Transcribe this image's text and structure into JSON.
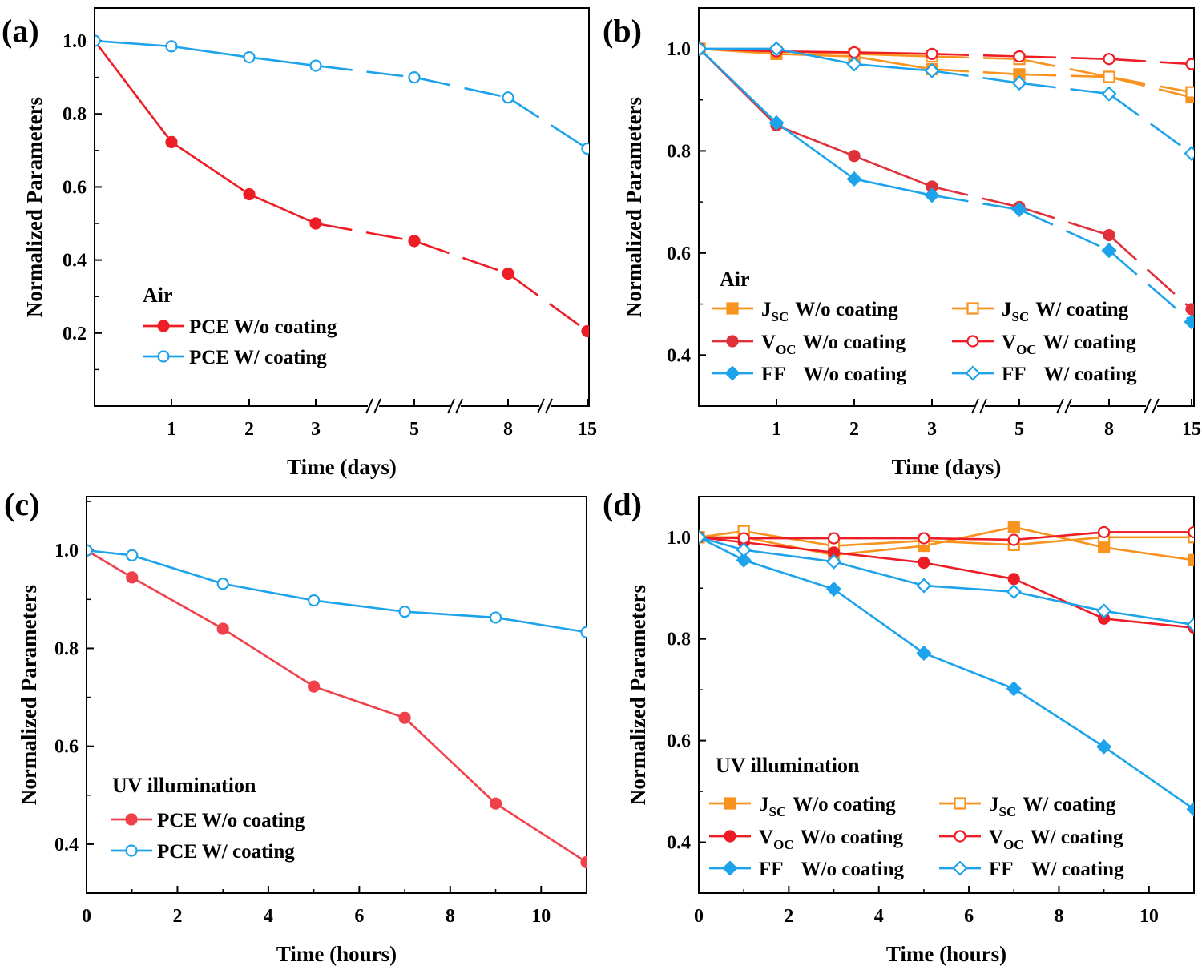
{
  "chart_data": [
    {
      "panel_label": "(a)",
      "type": "line",
      "xlabel": "Time (days)",
      "ylabel": "Normalized Parameters",
      "x_scale": "broken",
      "x_ticks": [
        "1",
        "2",
        "3",
        "5",
        "8",
        "15"
      ],
      "y_ticks": [
        "0.2",
        "0.4",
        "0.6",
        "0.8",
        "1.0"
      ],
      "ylim": [
        0.0,
        1.09
      ],
      "grid": false,
      "legend_title": "Air",
      "legend_position": "lower-left",
      "series": [
        {
          "name": "PCE W/o coating",
          "color": "#ee1c25",
          "marker": "circle",
          "filled": true,
          "x": [
            0,
            1,
            2,
            3,
            5,
            8,
            15
          ],
          "y": [
            1.0,
            0.723,
            0.58,
            0.5,
            0.452,
            0.363,
            0.205
          ]
        },
        {
          "name": "PCE W/   coating",
          "color": "#1ca3ec",
          "marker": "circle",
          "filled": false,
          "x": [
            0,
            1,
            2,
            3,
            5,
            8,
            15
          ],
          "y": [
            1.0,
            0.985,
            0.955,
            0.932,
            0.9,
            0.845,
            0.705
          ]
        }
      ]
    },
    {
      "panel_label": "(b)",
      "type": "line",
      "xlabel": "Time (days)",
      "ylabel": "Normalized Parameters",
      "x_scale": "broken",
      "x_ticks": [
        "1",
        "2",
        "3",
        "5",
        "8",
        "15"
      ],
      "y_ticks": [
        "0.4",
        "0.6",
        "0.8",
        "1.0"
      ],
      "ylim": [
        0.3,
        1.08
      ],
      "grid": false,
      "legend_title": "Air",
      "legend_position": "lower",
      "series": [
        {
          "name": "J<sub>SC</sub> W/o coating",
          "main": "J",
          "sub": "SC",
          "rest": "W/o coating",
          "color": "#f7931e",
          "marker": "square",
          "filled": true,
          "x": [
            0,
            1,
            2,
            3,
            5,
            8,
            15
          ],
          "y": [
            1.0,
            0.99,
            0.985,
            0.96,
            0.95,
            0.945,
            0.905
          ]
        },
        {
          "name": "J<sub>SC</sub> W/ coating",
          "main": "J",
          "sub": "SC",
          "rest": "W/ coating",
          "color": "#f7931e",
          "marker": "square",
          "filled": false,
          "x": [
            0,
            1,
            2,
            3,
            5,
            8,
            15
          ],
          "y": [
            1.0,
            0.995,
            0.99,
            0.985,
            0.98,
            0.945,
            0.915
          ]
        },
        {
          "name": "V<sub>OC</sub> W/o coating",
          "main": "V",
          "sub": "OC",
          "rest": "W/o coating",
          "color": "#e0313a",
          "marker": "circle",
          "filled": true,
          "x": [
            0,
            1,
            2,
            3,
            5,
            8,
            15
          ],
          "y": [
            1.0,
            0.85,
            0.79,
            0.73,
            0.69,
            0.635,
            0.49
          ]
        },
        {
          "name": "V<sub>OC</sub> W/ coating",
          "main": "V",
          "sub": "OC",
          "rest": "W/ coating",
          "color": "#ee1c25",
          "marker": "circle",
          "filled": false,
          "x": [
            0,
            1,
            2,
            3,
            5,
            8,
            15
          ],
          "y": [
            1.0,
            0.995,
            0.993,
            0.99,
            0.985,
            0.98,
            0.97
          ]
        },
        {
          "name": "FF W/o coating",
          "main": "FF",
          "sub": "",
          "rest": "W/o coating",
          "color": "#1ca3ec",
          "marker": "diamond",
          "filled": true,
          "x": [
            0,
            1,
            2,
            3,
            5,
            8,
            15
          ],
          "y": [
            1.0,
            0.855,
            0.745,
            0.713,
            0.685,
            0.605,
            0.465
          ]
        },
        {
          "name": "FF W/ coating",
          "main": "FF",
          "sub": "",
          "rest": "W/ coating",
          "color": "#1ca3ec",
          "marker": "diamond",
          "filled": false,
          "x": [
            0,
            1,
            2,
            3,
            5,
            8,
            15
          ],
          "y": [
            1.0,
            1.0,
            0.97,
            0.957,
            0.933,
            0.912,
            0.795
          ]
        }
      ]
    },
    {
      "panel_label": "(c)",
      "type": "line",
      "xlabel": "Time (hours)",
      "ylabel": "Normalized Parameters",
      "x_ticks": [
        "0",
        "2",
        "4",
        "6",
        "8",
        "10"
      ],
      "y_ticks": [
        "0.4",
        "0.6",
        "0.8",
        "1.0"
      ],
      "xlim": [
        0,
        11
      ],
      "ylim": [
        0.3,
        1.11
      ],
      "grid": false,
      "legend_title": "UV illumination",
      "legend_position": "lower-left",
      "series": [
        {
          "name": "PCE W/o coating",
          "color": "#f0414b",
          "marker": "circle",
          "filled": true,
          "x": [
            0,
            1,
            3,
            5,
            7,
            9,
            11
          ],
          "y": [
            1.0,
            0.945,
            0.84,
            0.722,
            0.658,
            0.483,
            0.363
          ]
        },
        {
          "name": "PCE W/   coating",
          "color": "#1ca3ec",
          "marker": "circle",
          "filled": false,
          "x": [
            0,
            1,
            3,
            5,
            7,
            9,
            11
          ],
          "y": [
            1.0,
            0.99,
            0.932,
            0.898,
            0.875,
            0.863,
            0.833
          ]
        }
      ]
    },
    {
      "panel_label": "(d)",
      "type": "line",
      "xlabel": "Time (hours)",
      "ylabel": "Normalized Parameters",
      "x_ticks": [
        "0",
        "2",
        "4",
        "6",
        "8",
        "10"
      ],
      "y_ticks": [
        "0.4",
        "0.6",
        "0.8",
        "1.0"
      ],
      "xlim": [
        0,
        11
      ],
      "ylim": [
        0.3,
        1.08
      ],
      "grid": false,
      "legend_title": "UV illumination",
      "legend_position": "lower",
      "series": [
        {
          "name": "J<sub>SC</sub> W/o coating",
          "main": "J",
          "sub": "SC",
          "rest": "W/o coating",
          "color": "#f7931e",
          "marker": "square",
          "filled": true,
          "x": [
            0,
            1,
            3,
            5,
            7,
            9,
            11
          ],
          "y": [
            1.0,
            1.0,
            0.965,
            0.983,
            1.02,
            0.98,
            0.955
          ]
        },
        {
          "name": "J<sub>SC</sub> W/ coating",
          "main": "J",
          "sub": "SC",
          "rest": "W/ coating",
          "color": "#f7931e",
          "marker": "square",
          "filled": false,
          "x": [
            0,
            1,
            3,
            5,
            7,
            9,
            11
          ],
          "y": [
            1.0,
            1.012,
            0.983,
            0.993,
            0.985,
            1.0,
            1.0
          ]
        },
        {
          "name": "V<sub>OC</sub> W/o coating",
          "main": "V",
          "sub": "OC",
          "rest": "W/o coating",
          "color": "#ee1c25",
          "marker": "circle",
          "filled": true,
          "x": [
            0,
            1,
            3,
            5,
            7,
            9,
            11
          ],
          "y": [
            1.0,
            0.99,
            0.97,
            0.95,
            0.918,
            0.84,
            0.822
          ]
        },
        {
          "name": "V<sub>OC</sub> W/ coating",
          "main": "V",
          "sub": "OC",
          "rest": "W/ coating",
          "color": "#ee1c25",
          "marker": "circle",
          "filled": false,
          "x": [
            0,
            1,
            3,
            5,
            7,
            9,
            11
          ],
          "y": [
            1.0,
            0.998,
            0.998,
            0.998,
            0.995,
            1.01,
            1.01
          ]
        },
        {
          "name": "FF W/o coating",
          "main": "FF",
          "sub": "",
          "rest": "W/o coating",
          "color": "#1ca3ec",
          "marker": "diamond",
          "filled": true,
          "x": [
            0,
            1,
            3,
            5,
            7,
            9,
            11
          ],
          "y": [
            1.0,
            0.955,
            0.898,
            0.772,
            0.702,
            0.588,
            0.465
          ]
        },
        {
          "name": "FF W/ coating",
          "main": "FF",
          "sub": "",
          "rest": "W/ coating",
          "color": "#1ca3ec",
          "marker": "diamond",
          "filled": false,
          "x": [
            0,
            1,
            3,
            5,
            7,
            9,
            11
          ],
          "y": [
            1.0,
            0.975,
            0.952,
            0.905,
            0.893,
            0.855,
            0.828
          ]
        }
      ]
    }
  ]
}
